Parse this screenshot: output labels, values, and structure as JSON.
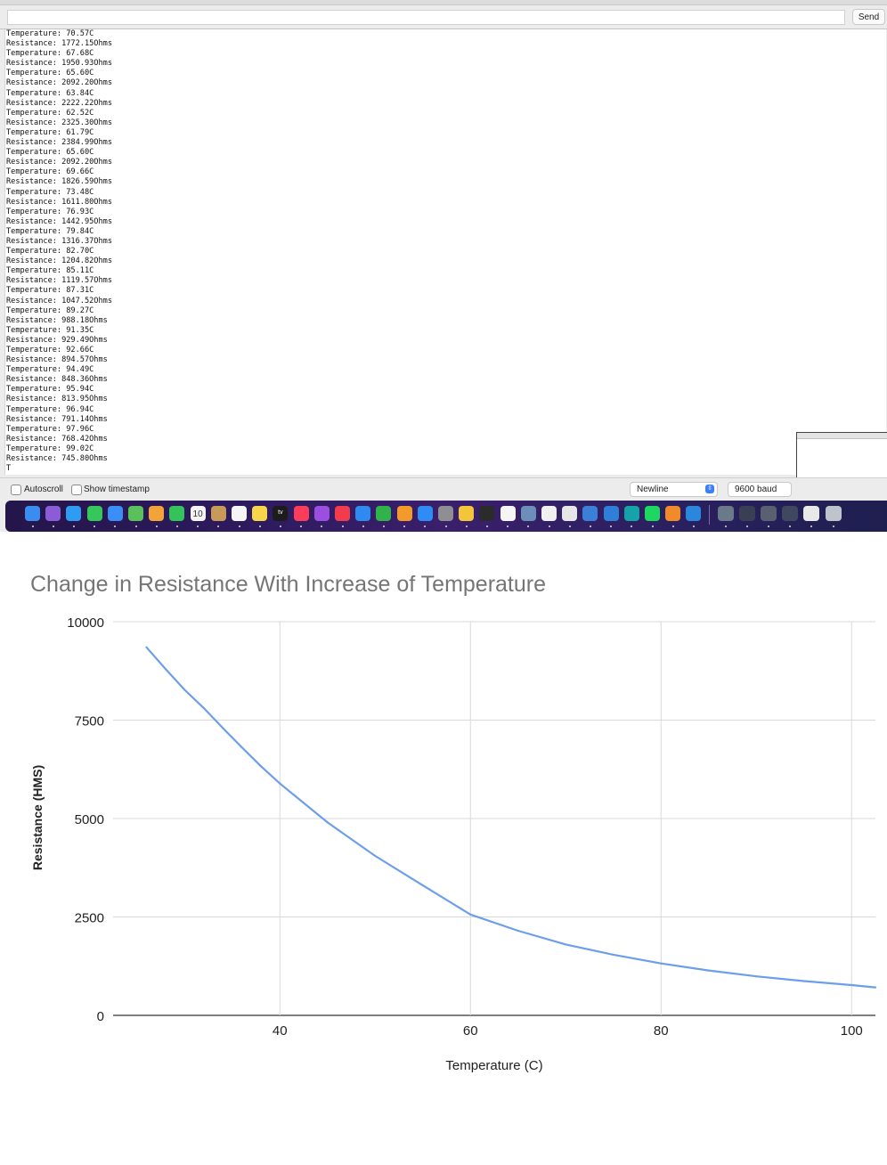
{
  "serial_monitor": {
    "send_input": {
      "value": "",
      "placeholder": ""
    },
    "send_label": "Send",
    "output_lines": [
      "Temperature: 70.57C",
      "Resistance: 1772.15Ohms",
      "Temperature: 67.68C",
      "Resistance: 1950.93Ohms",
      "Temperature: 65.60C",
      "Resistance: 2092.20Ohms",
      "Temperature: 63.84C",
      "Resistance: 2222.22Ohms",
      "Temperature: 62.52C",
      "Resistance: 2325.30Ohms",
      "Temperature: 61.79C",
      "Resistance: 2384.99Ohms",
      "Temperature: 65.60C",
      "Resistance: 2092.20Ohms",
      "Temperature: 69.66C",
      "Resistance: 1826.59Ohms",
      "Temperature: 73.48C",
      "Resistance: 1611.80Ohms",
      "Temperature: 76.93C",
      "Resistance: 1442.95Ohms",
      "Temperature: 79.84C",
      "Resistance: 1316.37Ohms",
      "Temperature: 82.70C",
      "Resistance: 1204.82Ohms",
      "Temperature: 85.11C",
      "Resistance: 1119.57Ohms",
      "Temperature: 87.31C",
      "Resistance: 1047.52Ohms",
      "Temperature: 89.27C",
      "Resistance: 988.18Ohms",
      "Temperature: 91.35C",
      "Resistance: 929.49Ohms",
      "Temperature: 92.66C",
      "Resistance: 894.57Ohms",
      "Temperature: 94.49C",
      "Resistance: 848.36Ohms",
      "Temperature: 95.94C",
      "Resistance: 813.95Ohms",
      "Temperature: 96.94C",
      "Resistance: 791.14Ohms",
      "Temperature: 97.96C",
      "Resistance: 768.42Ohms",
      "Temperature: 99.02C",
      "Resistance: 745.80Ohms",
      "T"
    ],
    "autoscroll_label": "Autoscroll",
    "autoscroll_checked": false,
    "timestamp_label": "Show timestamp",
    "timestamp_checked": false,
    "line_ending": "Newline",
    "baud_rate": "9600 baud"
  },
  "dock": {
    "calendar_day": "10",
    "tv_label": "tv",
    "apps": [
      {
        "icon": "finder-icon",
        "color": "#3b8cf0"
      },
      {
        "icon": "launchpad-icon",
        "color": "#8a5cd6"
      },
      {
        "icon": "safari-icon",
        "color": "#2f9cf3"
      },
      {
        "icon": "messages-icon",
        "color": "#35c759"
      },
      {
        "icon": "mail-icon",
        "color": "#3a8ef5"
      },
      {
        "icon": "maps-icon",
        "color": "#5ac05a"
      },
      {
        "icon": "photos-icon",
        "color": "#f2a33a"
      },
      {
        "icon": "facetime-icon",
        "color": "#34c35a"
      },
      {
        "icon": "calendar-icon",
        "color": "#f4f4f4"
      },
      {
        "icon": "contacts-icon",
        "color": "#c89a5a"
      },
      {
        "icon": "reminders-icon",
        "color": "#f5f5f5"
      },
      {
        "icon": "notes-icon",
        "color": "#f7d54a"
      },
      {
        "icon": "tv-icon",
        "color": "#1c1c1c"
      },
      {
        "icon": "music-icon",
        "color": "#fb3c5a"
      },
      {
        "icon": "podcasts-icon",
        "color": "#9b4fe0"
      },
      {
        "icon": "news-icon",
        "color": "#f23b4c"
      },
      {
        "icon": "keynote-icon",
        "color": "#2f8af0"
      },
      {
        "icon": "numbers-icon",
        "color": "#2fb34a"
      },
      {
        "icon": "pages-icon",
        "color": "#f39a2b"
      },
      {
        "icon": "app-store-icon",
        "color": "#2f8cf5"
      },
      {
        "icon": "system-preferences-icon",
        "color": "#8e8e93"
      },
      {
        "icon": "notes-app-icon",
        "color": "#f3c53a"
      },
      {
        "icon": "terminal-icon",
        "color": "#2b2b2b"
      },
      {
        "icon": "github-icon",
        "color": "#f5f5f5"
      },
      {
        "icon": "preview-icon",
        "color": "#6b8fb8"
      },
      {
        "icon": "textedit-icon",
        "color": "#f0f0f0"
      },
      {
        "icon": "slack-icon",
        "color": "#e6e6e6"
      },
      {
        "icon": "quicktime-icon",
        "color": "#3a7fd8"
      },
      {
        "icon": "vscode-blue-icon",
        "color": "#2f7fd9"
      },
      {
        "icon": "arduino-icon",
        "color": "#14a3a8"
      },
      {
        "icon": "spotify-icon",
        "color": "#1ed760"
      },
      {
        "icon": "sublime-icon",
        "color": "#f18a2a"
      },
      {
        "icon": "vscode-icon",
        "color": "#2b87dc"
      }
    ],
    "windows": [
      {
        "icon": "window-thumbnail-icon",
        "color": "#6a7a8a"
      },
      {
        "icon": "window-thumbnail-icon",
        "color": "#3a3f55"
      },
      {
        "icon": "window-thumbnail-icon",
        "color": "#5a6070"
      },
      {
        "icon": "window-thumbnail-icon",
        "color": "#404860"
      },
      {
        "icon": "window-thumbnail-icon",
        "color": "#e8e8e8"
      },
      {
        "icon": "trash-icon",
        "color": "#bfc4cc"
      }
    ]
  },
  "chart_data": {
    "type": "line",
    "title": "Change in Resistance With Increase of Temperature",
    "xlabel": "Temperature (C)",
    "ylabel": "Resistance (HMS)",
    "xlim": [
      22.5,
      102.5
    ],
    "ylim": [
      0,
      10000
    ],
    "xticks": [
      40,
      60,
      80,
      100
    ],
    "yticks": [
      0,
      2500,
      5000,
      7500,
      10000
    ],
    "grid": true,
    "line_color": "#6d9eeb",
    "x": [
      26,
      28,
      30,
      32,
      34,
      36,
      38,
      40,
      45,
      50,
      55,
      60,
      65,
      70,
      75,
      80,
      85,
      90,
      95,
      100,
      102.5
    ],
    "y": [
      9350,
      8800,
      8270,
      7810,
      7300,
      6810,
      6330,
      5890,
      4900,
      4050,
      3300,
      2560,
      2150,
      1800,
      1540,
      1320,
      1140,
      990,
      870,
      770,
      710
    ]
  }
}
